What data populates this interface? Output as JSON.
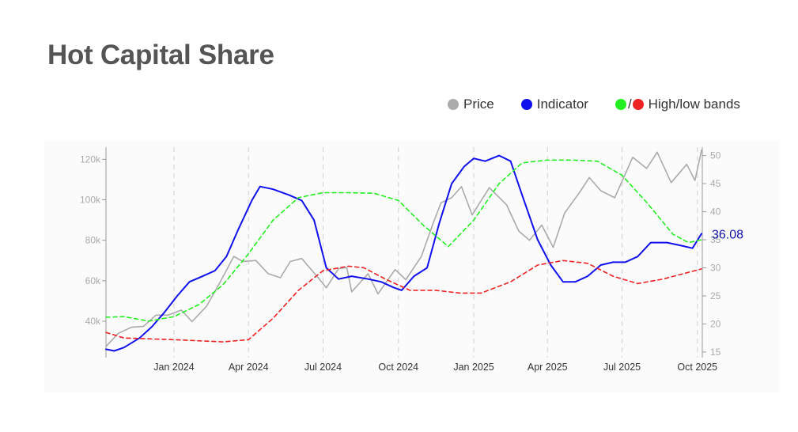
{
  "title": "Hot Capital Share",
  "legend": {
    "price": {
      "label": "Price",
      "color": "#aaaaaa"
    },
    "indicator": {
      "label": "Indicator",
      "color": "#1010ee"
    },
    "bands": {
      "label": "High/low bands",
      "high_color": "#22ee22",
      "low_color": "#ee2222"
    }
  },
  "chart_data": {
    "type": "line",
    "title": "Hot Capital Share",
    "x_ticks": [
      "Jan 2024",
      "Apr 2024",
      "Jul 2024",
      "Oct 2024",
      "Jan 2025",
      "Apr 2025",
      "Jul 2025",
      "Oct 2025"
    ],
    "x_tick_dates": [
      "2024-01-01",
      "2024-04-01",
      "2024-07-01",
      "2024-10-01",
      "2025-01-01",
      "2025-04-01",
      "2025-07-01",
      "2025-10-01"
    ],
    "x_range": [
      "2023-10-10",
      "2025-10-07"
    ],
    "y_left": {
      "ticks": [
        "40k",
        "60k",
        "80k",
        "100k",
        "120k"
      ],
      "tick_values": [
        40000,
        60000,
        80000,
        100000,
        120000
      ],
      "range": [
        22000,
        126000
      ]
    },
    "y_right": {
      "ticks": [
        "15",
        "20",
        "25",
        "30",
        "35",
        "40",
        "45",
        "50"
      ],
      "tick_values": [
        15,
        20,
        25,
        30,
        35,
        40,
        45,
        50
      ],
      "range": [
        14,
        51.5
      ]
    },
    "last_value_label": "36.08",
    "series": [
      {
        "name": "Price",
        "axis": "left",
        "color": "#aaaaaa",
        "points": [
          [
            "2023-10-10",
            27500
          ],
          [
            "2023-10-25",
            34000
          ],
          [
            "2023-11-10",
            37000
          ],
          [
            "2023-11-25",
            37500
          ],
          [
            "2023-12-10",
            43000
          ],
          [
            "2023-12-25",
            43000
          ],
          [
            "2024-01-10",
            45500
          ],
          [
            "2024-01-23",
            39800
          ],
          [
            "2024-02-10",
            47500
          ],
          [
            "2024-02-28",
            60500
          ],
          [
            "2024-03-14",
            72000
          ],
          [
            "2024-03-25",
            69500
          ],
          [
            "2024-04-10",
            70000
          ],
          [
            "2024-04-25",
            63500
          ],
          [
            "2024-05-10",
            61500
          ],
          [
            "2024-05-22",
            69500
          ],
          [
            "2024-06-05",
            71000
          ],
          [
            "2024-06-25",
            61500
          ],
          [
            "2024-07-05",
            56500
          ],
          [
            "2024-07-20",
            66000
          ],
          [
            "2024-07-30",
            66500
          ],
          [
            "2024-08-05",
            54500
          ],
          [
            "2024-08-25",
            63500
          ],
          [
            "2024-09-06",
            53500
          ],
          [
            "2024-09-27",
            65500
          ],
          [
            "2024-10-10",
            60500
          ],
          [
            "2024-10-29",
            72000
          ],
          [
            "2024-11-12",
            88000
          ],
          [
            "2024-11-22",
            98500
          ],
          [
            "2024-12-05",
            101000
          ],
          [
            "2024-12-17",
            106500
          ],
          [
            "2024-12-30",
            92500
          ],
          [
            "2025-01-20",
            106000
          ],
          [
            "2025-02-10",
            97500
          ],
          [
            "2025-02-25",
            84500
          ],
          [
            "2025-03-10",
            80000
          ],
          [
            "2025-03-25",
            87500
          ],
          [
            "2025-04-08",
            76500
          ],
          [
            "2025-04-22",
            93500
          ],
          [
            "2025-05-10",
            103500
          ],
          [
            "2025-05-22",
            111000
          ],
          [
            "2025-06-05",
            104500
          ],
          [
            "2025-06-22",
            101000
          ],
          [
            "2025-07-14",
            121000
          ],
          [
            "2025-07-31",
            115500
          ],
          [
            "2025-08-13",
            123500
          ],
          [
            "2025-08-30",
            108500
          ],
          [
            "2025-09-18",
            117500
          ],
          [
            "2025-09-28",
            109500
          ],
          [
            "2025-10-06",
            124500
          ]
        ]
      },
      {
        "name": "Indicator",
        "axis": "right",
        "color": "#1010ee",
        "points": [
          [
            "2023-10-10",
            15.5
          ],
          [
            "2023-10-20",
            15.2
          ],
          [
            "2023-11-01",
            15.8
          ],
          [
            "2023-11-20",
            17.5
          ],
          [
            "2023-12-05",
            19.5
          ],
          [
            "2023-12-20",
            22.0
          ],
          [
            "2024-01-05",
            25.0
          ],
          [
            "2024-01-20",
            27.5
          ],
          [
            "2024-02-05",
            28.5
          ],
          [
            "2024-02-20",
            29.5
          ],
          [
            "2024-03-05",
            32.0
          ],
          [
            "2024-03-20",
            37.0
          ],
          [
            "2024-04-05",
            42.0
          ],
          [
            "2024-04-15",
            44.5
          ],
          [
            "2024-05-01",
            44.0
          ],
          [
            "2024-05-20",
            43.0
          ],
          [
            "2024-06-05",
            42.0
          ],
          [
            "2024-06-20",
            38.5
          ],
          [
            "2024-07-05",
            30.0
          ],
          [
            "2024-07-20",
            28.0
          ],
          [
            "2024-08-05",
            28.5
          ],
          [
            "2024-08-25",
            28.0
          ],
          [
            "2024-09-10",
            27.5
          ],
          [
            "2024-09-25",
            26.5
          ],
          [
            "2024-10-05",
            26.0
          ],
          [
            "2024-10-20",
            28.5
          ],
          [
            "2024-11-05",
            30.0
          ],
          [
            "2024-11-20",
            38.0
          ],
          [
            "2024-12-05",
            45.0
          ],
          [
            "2024-12-20",
            48.0
          ],
          [
            "2025-01-01",
            49.5
          ],
          [
            "2025-01-15",
            49.0
          ],
          [
            "2025-02-01",
            50.0
          ],
          [
            "2025-02-15",
            49.0
          ],
          [
            "2025-03-01",
            43.0
          ],
          [
            "2025-03-20",
            35.0
          ],
          [
            "2025-04-05",
            30.5
          ],
          [
            "2025-04-20",
            27.5
          ],
          [
            "2025-05-05",
            27.5
          ],
          [
            "2025-05-20",
            28.5
          ],
          [
            "2025-06-05",
            30.5
          ],
          [
            "2025-06-20",
            31.0
          ],
          [
            "2025-07-05",
            31.0
          ],
          [
            "2025-07-20",
            32.0
          ],
          [
            "2025-08-05",
            34.5
          ],
          [
            "2025-08-25",
            34.5
          ],
          [
            "2025-09-10",
            34.0
          ],
          [
            "2025-09-25",
            33.5
          ],
          [
            "2025-10-06",
            36.08
          ]
        ]
      },
      {
        "name": "High band",
        "axis": "right",
        "color": "#22ee22",
        "dashed": true,
        "points": [
          [
            "2023-10-10",
            21.2
          ],
          [
            "2023-11-01",
            21.3
          ],
          [
            "2023-12-01",
            20.5
          ],
          [
            "2024-01-01",
            21.3
          ],
          [
            "2024-02-01",
            23.5
          ],
          [
            "2024-03-01",
            27.0
          ],
          [
            "2024-04-01",
            32.5
          ],
          [
            "2024-05-01",
            38.5
          ],
          [
            "2024-06-01",
            42.5
          ],
          [
            "2024-07-01",
            43.4
          ],
          [
            "2024-08-01",
            43.4
          ],
          [
            "2024-09-01",
            43.3
          ],
          [
            "2024-10-01",
            42.0
          ],
          [
            "2024-11-01",
            37.5
          ],
          [
            "2024-12-01",
            33.8
          ],
          [
            "2025-01-01",
            38.5
          ],
          [
            "2025-02-01",
            45.0
          ],
          [
            "2025-03-01",
            48.7
          ],
          [
            "2025-04-01",
            49.2
          ],
          [
            "2025-05-01",
            49.2
          ],
          [
            "2025-06-01",
            49.0
          ],
          [
            "2025-07-01",
            46.5
          ],
          [
            "2025-08-01",
            41.5
          ],
          [
            "2025-09-01",
            36.0
          ],
          [
            "2025-09-20",
            34.5
          ],
          [
            "2025-10-06",
            35.0
          ]
        ]
      },
      {
        "name": "Low band",
        "axis": "right",
        "color": "#ee2222",
        "dashed": true,
        "points": [
          [
            "2023-10-10",
            18.5
          ],
          [
            "2023-11-01",
            17.5
          ],
          [
            "2024-01-01",
            17.2
          ],
          [
            "2024-03-01",
            16.8
          ],
          [
            "2024-04-01",
            17.2
          ],
          [
            "2024-05-01",
            21.0
          ],
          [
            "2024-06-01",
            26.0
          ],
          [
            "2024-07-01",
            29.5
          ],
          [
            "2024-08-01",
            30.3
          ],
          [
            "2024-08-20",
            30.0
          ],
          [
            "2024-09-15",
            28.0
          ],
          [
            "2024-10-15",
            26.0
          ],
          [
            "2024-11-15",
            26.0
          ],
          [
            "2024-12-15",
            25.5
          ],
          [
            "2025-01-10",
            25.5
          ],
          [
            "2025-02-15",
            27.5
          ],
          [
            "2025-03-20",
            30.5
          ],
          [
            "2025-04-20",
            31.3
          ],
          [
            "2025-05-20",
            30.8
          ],
          [
            "2025-06-20",
            28.5
          ],
          [
            "2025-07-20",
            27.2
          ],
          [
            "2025-08-20",
            28.0
          ],
          [
            "2025-09-15",
            29.0
          ],
          [
            "2025-10-06",
            29.8
          ]
        ]
      }
    ]
  }
}
